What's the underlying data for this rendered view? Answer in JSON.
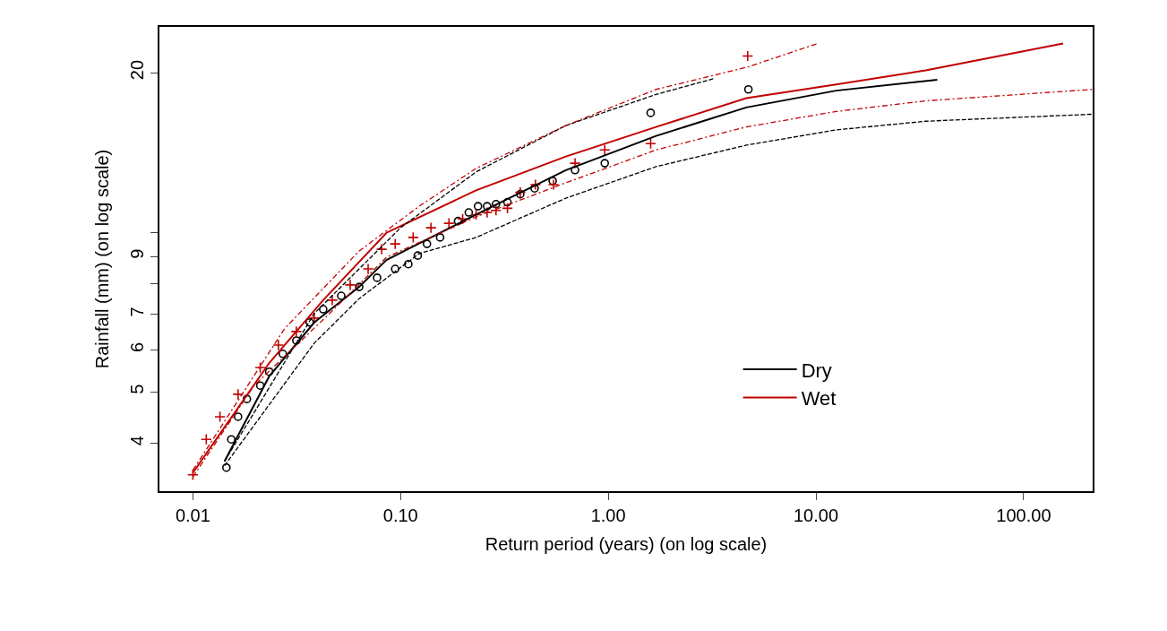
{
  "chart_data": {
    "type": "scatter",
    "xlabel": "Return period (years) (on log scale)",
    "ylabel": "Rainfall (mm) (on log scale)",
    "log": "xy",
    "grid": false,
    "legend": "bottom right",
    "xlim": [
      0.0069,
      215
    ],
    "ylim": [
      3.25,
      24.4
    ],
    "xticks": [
      {
        "value": 0.01,
        "label": "0.01"
      },
      {
        "value": 0.1,
        "label": "0.10"
      },
      {
        "value": 1,
        "label": "1.00"
      },
      {
        "value": 10,
        "label": "10.00"
      },
      {
        "value": 100,
        "label": "100.00"
      }
    ],
    "yticks": [
      4,
      5,
      6,
      7,
      {
        "value": 8,
        "label": null
      },
      9,
      {
        "value": 10,
        "label": null
      },
      20
    ],
    "series": [
      {
        "marker": "circle",
        "color": "#000000",
        "x": [
          0.0145,
          0.0153,
          0.0165,
          0.0182,
          0.0211,
          0.0233,
          0.0271,
          0.0315,
          0.0365,
          0.0424,
          0.0518,
          0.0632,
          0.0771,
          0.0942,
          0.109,
          0.121,
          0.134,
          0.155,
          0.189,
          0.213,
          0.236,
          0.261,
          0.288,
          0.327,
          0.377,
          0.442,
          0.54,
          0.692,
          0.962,
          1.6,
          4.73
        ],
        "values": [
          3.6,
          4.07,
          4.49,
          4.85,
          5.14,
          5.46,
          5.9,
          6.25,
          6.76,
          7.16,
          7.59,
          7.89,
          8.21,
          8.53,
          8.71,
          9.04,
          9.51,
          9.78,
          10.5,
          10.9,
          11.2,
          11.2,
          11.3,
          11.4,
          11.8,
          12.1,
          12.5,
          13.1,
          13.5,
          16.8,
          18.6
        ]
      },
      {
        "marker": "cross",
        "color": "#c00000",
        "x": [
          0.01,
          0.0116,
          0.0135,
          0.0165,
          0.0211,
          0.0258,
          0.0315,
          0.0384,
          0.0469,
          0.0572,
          0.0698,
          0.0811,
          0.0942,
          0.115,
          0.14,
          0.171,
          0.199,
          0.231,
          0.261,
          0.288,
          0.327,
          0.377,
          0.446,
          0.545,
          0.692,
          0.962,
          1.6,
          4.69
        ],
        "values": [
          3.49,
          4.07,
          4.49,
          4.95,
          5.56,
          6.13,
          6.5,
          6.89,
          7.45,
          7.96,
          8.53,
          9.29,
          9.51,
          9.78,
          10.2,
          10.4,
          10.6,
          10.8,
          10.9,
          11.0,
          11.1,
          11.9,
          12.3,
          12.3,
          13.5,
          14.3,
          14.7,
          21.5
        ]
      },
      {
        "type": "line",
        "name": "Dry",
        "line_style": "solid",
        "color": "#000000",
        "x": [
          0.0142,
          0.0233,
          0.0384,
          0.0632,
          0.0855,
          0.231,
          0.625,
          1.7,
          4.62,
          12.5,
          38.4
        ],
        "values": [
          3.7,
          5.35,
          6.76,
          7.89,
          8.87,
          10.8,
          13.1,
          15.2,
          17.2,
          18.5,
          19.4
        ]
      },
      {
        "type": "line",
        "name": "Wet",
        "line_style": "solid",
        "color": "#c00000",
        "x": [
          0.01,
          0.0233,
          0.0424,
          0.0855,
          0.231,
          0.625,
          1.7,
          4.62,
          12.5,
          33.8,
          155
        ],
        "values": [
          3.52,
          5.67,
          7.45,
          9.98,
          12.0,
          13.9,
          15.8,
          17.9,
          19.0,
          20.2,
          22.7
        ]
      },
      {
        "type": "line",
        "line_style": "dashed",
        "color": "#000000",
        "x": [
          0.0142,
          0.0384,
          0.1,
          0.231,
          0.625,
          1.7,
          3.24
        ],
        "values": [
          3.7,
          7.03,
          10.2,
          13.0,
          15.9,
          18.2,
          19.5
        ]
      },
      {
        "type": "line",
        "line_style": "dashed",
        "color": "#000000",
        "x": [
          0.0142,
          0.0384,
          0.0632,
          0.123,
          0.231,
          0.625,
          1.7,
          4.62,
          12.5,
          33.8,
          215
        ],
        "values": [
          3.63,
          6.18,
          7.5,
          9.12,
          9.78,
          11.6,
          13.3,
          14.6,
          15.6,
          16.2,
          16.7
        ]
      },
      {
        "type": "line",
        "line_style": "dashdot",
        "color": "#c00000",
        "x": [
          0.01,
          0.0276,
          0.0632,
          0.123,
          0.231,
          0.625,
          1.7,
          4.69,
          10.2
        ],
        "values": [
          3.56,
          6.58,
          9.22,
          11.2,
          13.2,
          15.9,
          18.6,
          20.5,
          22.7
        ]
      },
      {
        "type": "line",
        "line_style": "dashdot",
        "color": "#c00000",
        "x": [
          0.01,
          0.0197,
          0.0455,
          0.0855,
          0.231,
          0.625,
          1.7,
          4.62,
          12.5,
          33.8,
          215
        ],
        "values": [
          3.46,
          5.14,
          7.03,
          8.97,
          10.7,
          12.4,
          14.3,
          15.8,
          16.9,
          17.7,
          18.6
        ]
      }
    ]
  }
}
